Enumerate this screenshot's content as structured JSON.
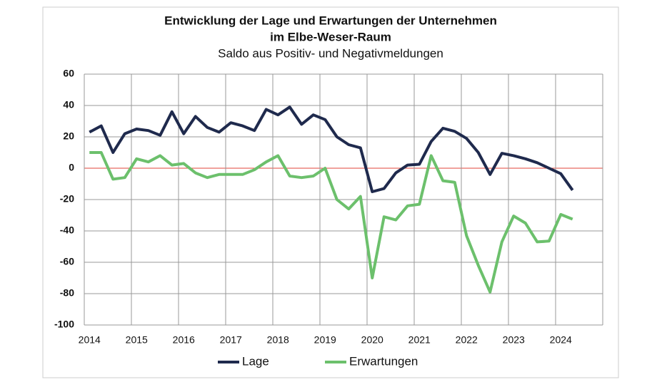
{
  "chart_data": {
    "type": "line",
    "title": "Entwicklung der Lage und Erwartungen der Unternehmen",
    "title_line2": "im Elbe-Weser-Raum",
    "subtitle": "Saldo aus Positiv- und Negativmeldungen",
    "categories": [
      "2014",
      null,
      null,
      null,
      "2015",
      null,
      null,
      null,
      "2016",
      null,
      null,
      null,
      "2017",
      null,
      null,
      null,
      "2018",
      null,
      null,
      null,
      "2019",
      null,
      null,
      null,
      "2020",
      null,
      null,
      null,
      "2021",
      null,
      null,
      null,
      "2022",
      null,
      null,
      null,
      "2023",
      null,
      null,
      null,
      "2024",
      null
    ],
    "series": [
      {
        "name": "Lage",
        "color": "#1f2a4d",
        "values": [
          23,
          27,
          10,
          22,
          25,
          24,
          21,
          36,
          22,
          33,
          26,
          23,
          29,
          27,
          24,
          37.5,
          34,
          39,
          28,
          34,
          31,
          20,
          15,
          13,
          -15,
          -13,
          -3,
          2,
          2.5,
          17,
          25.5,
          23.5,
          19,
          10,
          -4,
          9.5,
          8,
          6,
          3.5,
          0,
          -3.5,
          -14
        ]
      },
      {
        "name": "Erwartungen",
        "color": "#6cc06c",
        "values": [
          10,
          10,
          -7,
          -6,
          6,
          4,
          8,
          2,
          3,
          -3,
          -6,
          -4,
          -4,
          -4,
          -1,
          4,
          8,
          -5,
          -6,
          -5,
          0,
          -20,
          -26,
          -18,
          -70,
          -31,
          -33,
          -24,
          -23,
          8,
          -8,
          -9,
          -43,
          -62,
          -79,
          -47,
          -30.5,
          -35,
          -47,
          -46.5,
          -29.5,
          -32.5
        ]
      }
    ],
    "ylim": [
      -100,
      60
    ],
    "yticks": [
      -100,
      -80,
      -60,
      -40,
      -20,
      0,
      20,
      40,
      60
    ],
    "grid": true,
    "zero_line_color": "#e0453a",
    "legend": "bottom"
  }
}
